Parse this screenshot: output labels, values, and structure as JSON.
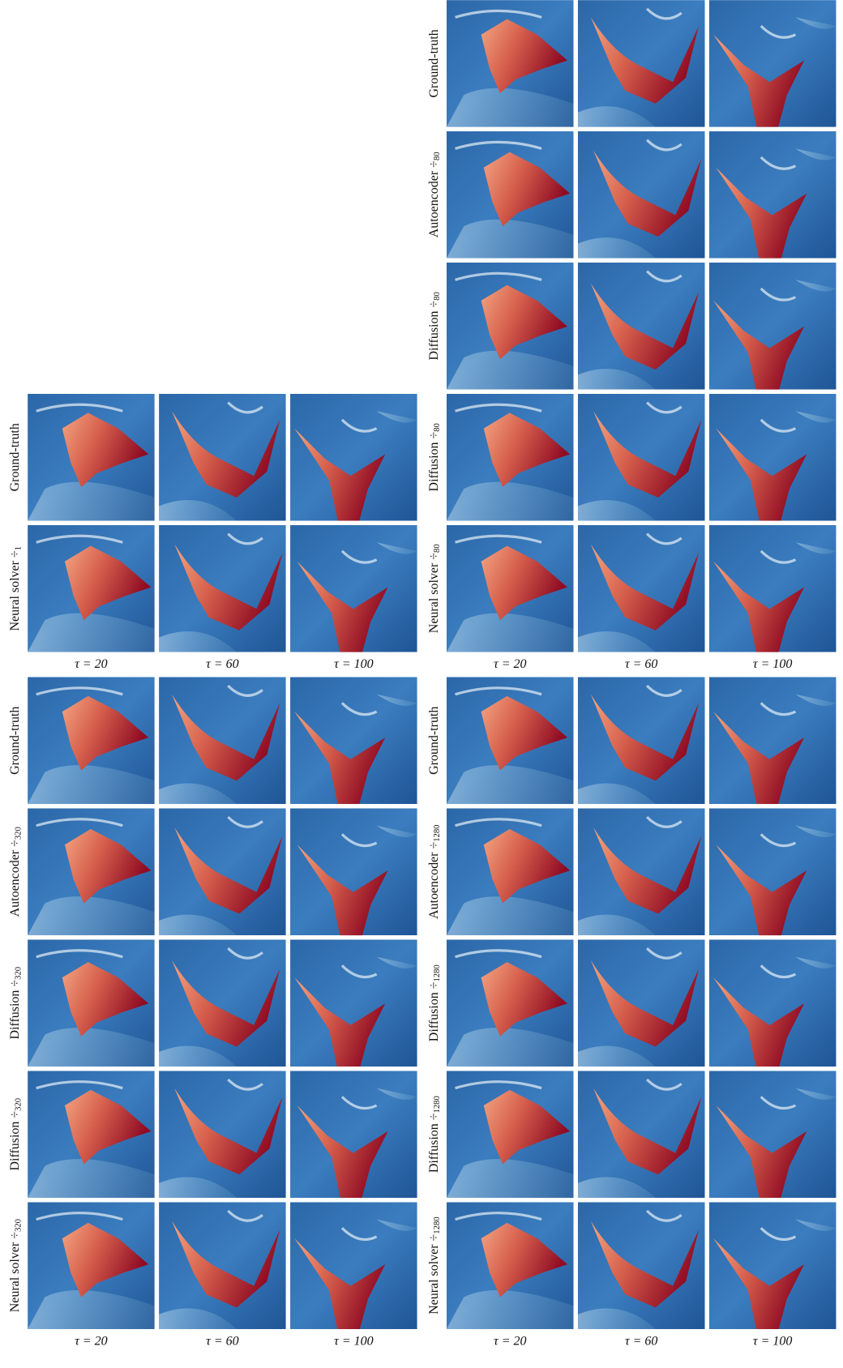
{
  "groups": [
    {
      "rows": [
        {
          "label": "Ground-truth"
        },
        {
          "label": "Autoencoder ÷",
          "sub": "80"
        },
        {
          "label": "Diffusion ÷",
          "sub": "80"
        },
        {
          "label": "Diffusion ÷",
          "sub": "80"
        },
        {
          "label": "Neural solver ÷",
          "sub": "80"
        }
      ],
      "columns": [
        "τ = 20",
        "τ = 60",
        "τ = 100"
      ]
    },
    {
      "rows": [
        {
          "label": "Ground-truth"
        },
        {
          "label": "Neural solver ÷",
          "sub": "1"
        }
      ],
      "columns": [
        "τ = 20",
        "τ = 60",
        "τ = 100"
      ]
    },
    {
      "rows": [
        {
          "label": "Ground-truth"
        },
        {
          "label": "Autoencoder ÷",
          "sub": "320"
        },
        {
          "label": "Diffusion ÷",
          "sub": "320"
        },
        {
          "label": "Diffusion ÷",
          "sub": "320"
        },
        {
          "label": "Neural solver ÷",
          "sub": "320"
        }
      ],
      "columns": [
        "τ = 20",
        "τ = 60",
        "τ = 100"
      ]
    },
    {
      "rows": [
        {
          "label": "Ground-truth"
        },
        {
          "label": "Autoencoder ÷",
          "sub": "1280"
        },
        {
          "label": "Diffusion ÷",
          "sub": "1280"
        },
        {
          "label": "Diffusion ÷",
          "sub": "1280"
        },
        {
          "label": "Neural solver ÷",
          "sub": "1280"
        }
      ],
      "columns": [
        "τ = 20",
        "τ = 60",
        "τ = 100"
      ]
    }
  ]
}
